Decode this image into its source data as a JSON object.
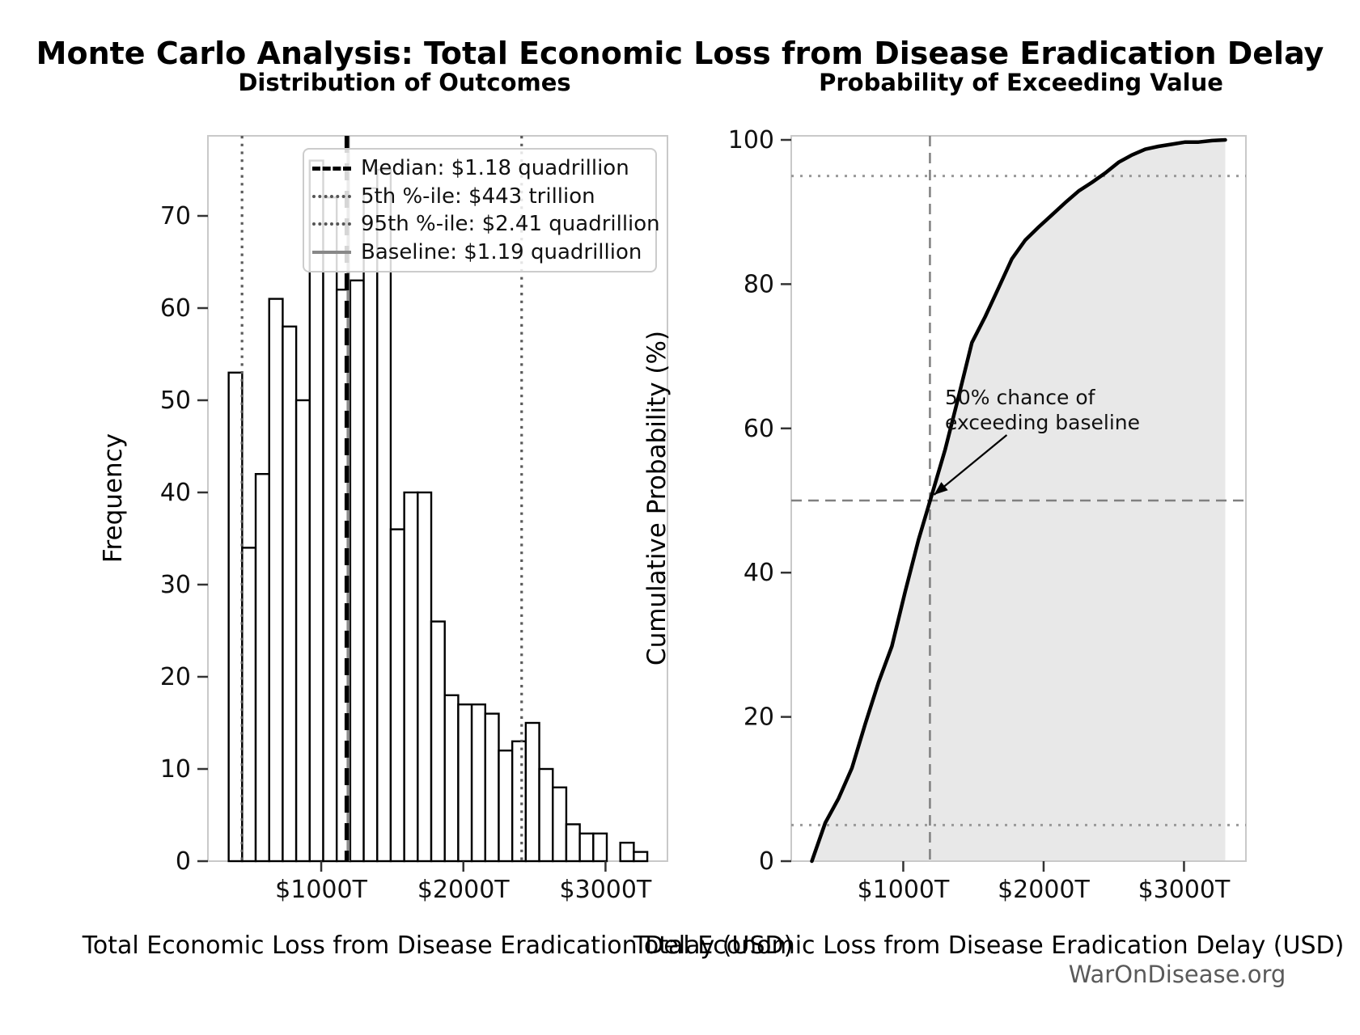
{
  "figure": {
    "title": "Monte Carlo Analysis: Total Economic Loss from Disease Eradication Delay",
    "watermark": "WarOnDisease.org"
  },
  "left_chart": {
    "title": "Distribution of Outcomes",
    "xlabel": "Total Economic Loss from Disease Eradication Delay (USD)",
    "ylabel": "Frequency",
    "x_ticks": [
      {
        "value": 1000,
        "label": "$1000T"
      },
      {
        "value": 2000,
        "label": "$2000T"
      },
      {
        "value": 3000,
        "label": "$3000T"
      }
    ],
    "y_ticks": [
      0,
      10,
      20,
      30,
      40,
      50,
      60,
      70
    ],
    "legend": [
      {
        "label": "Median: $1.18 quadrillion",
        "style": "dashed-black"
      },
      {
        "label": "5th %-ile: $443 trillion",
        "style": "dotted-gray"
      },
      {
        "label": "95th %-ile: $2.41 quadrillion",
        "style": "dotted-gray"
      },
      {
        "label": "Baseline: $1.19 quadrillion",
        "style": "solid-gray"
      }
    ],
    "lines": {
      "median_T": 1180,
      "p5_T": 443,
      "p95_T": 2410,
      "baseline_T": 1190
    }
  },
  "right_chart": {
    "title": "Probability of Exceeding Value",
    "xlabel": "Total Economic Loss from Disease Eradication Delay (USD)",
    "ylabel": "Cumulative Probability (%)",
    "x_ticks": [
      {
        "value": 1000,
        "label": "$1000T"
      },
      {
        "value": 2000,
        "label": "$2000T"
      },
      {
        "value": 3000,
        "label": "$3000T"
      }
    ],
    "y_ticks": [
      0,
      20,
      40,
      60,
      80,
      100
    ],
    "annotation": {
      "line1": "50% chance of",
      "line2": "exceeding baseline"
    },
    "ref_lines": {
      "h_pct_50": 50,
      "h_pct_95": 95,
      "h_pct_5": 5,
      "v_baseline_T": 1190
    }
  },
  "chart_data": [
    {
      "type": "bar",
      "subtype": "histogram",
      "title": "Distribution of Outcomes",
      "xlabel": "Total Economic Loss from Disease Eradication Delay (USD)",
      "ylabel": "Frequency",
      "x_unit": "trillion USD",
      "bin_start": 349,
      "bin_width": 95,
      "counts": [
        53,
        34,
        42,
        61,
        58,
        50,
        76,
        72,
        62,
        63,
        73,
        75,
        36,
        40,
        40,
        26,
        18,
        17,
        17,
        16,
        12,
        13,
        15,
        10,
        8,
        4,
        3,
        3,
        0,
        2,
        1
      ],
      "n_samples": 1000,
      "xlim": [
        203,
        3436
      ],
      "ylim": [
        0,
        78.7
      ],
      "grid": false,
      "legend_position": "upper left",
      "vlines": {
        "median_T": 1180,
        "p5_T": 443,
        "p95_T": 2410,
        "baseline_T": 1190
      }
    },
    {
      "type": "line",
      "subtype": "cdf",
      "title": "Probability of Exceeding Value",
      "xlabel": "Total Economic Loss from Disease Eradication Delay (USD)",
      "ylabel": "Cumulative Probability (%)",
      "x_unit": "trillion USD",
      "x_T": [
        349,
        444,
        539,
        634,
        729,
        824,
        919,
        1014,
        1109,
        1204,
        1299,
        1394,
        1489,
        1584,
        1679,
        1774,
        1869,
        1964,
        2059,
        2154,
        2249,
        2344,
        2439,
        2534,
        2629,
        2724,
        2819,
        2914,
        3009,
        3104,
        3199,
        3294
      ],
      "y_pct": [
        0,
        5.3,
        8.7,
        12.9,
        19.0,
        24.8,
        29.8,
        37.4,
        44.6,
        50.8,
        57.1,
        64.4,
        71.9,
        75.5,
        79.5,
        83.5,
        86.1,
        87.9,
        89.6,
        91.3,
        92.9,
        94.1,
        95.4,
        96.9,
        97.9,
        98.7,
        99.1,
        99.4,
        99.7,
        99.7,
        99.9,
        100
      ],
      "fill": "under-curve",
      "xlim": [
        202,
        3507
      ],
      "ylim": [
        0,
        100.6
      ],
      "grid": false
    }
  ],
  "colors": {
    "curve": "#000000",
    "hist_edge": "#000000",
    "hist_fill": "#ffffff",
    "fill_area": "#e8e8e8",
    "dashed_ref": "#808080",
    "dotted_ref_left": "#5a5a5a",
    "dotted_ref_right": "#999999",
    "median_line": "#000000",
    "baseline_line": "#8a8a8a",
    "spine": "#c9c9c9",
    "tick": "#333333",
    "watermark": "#5a5a5a"
  }
}
